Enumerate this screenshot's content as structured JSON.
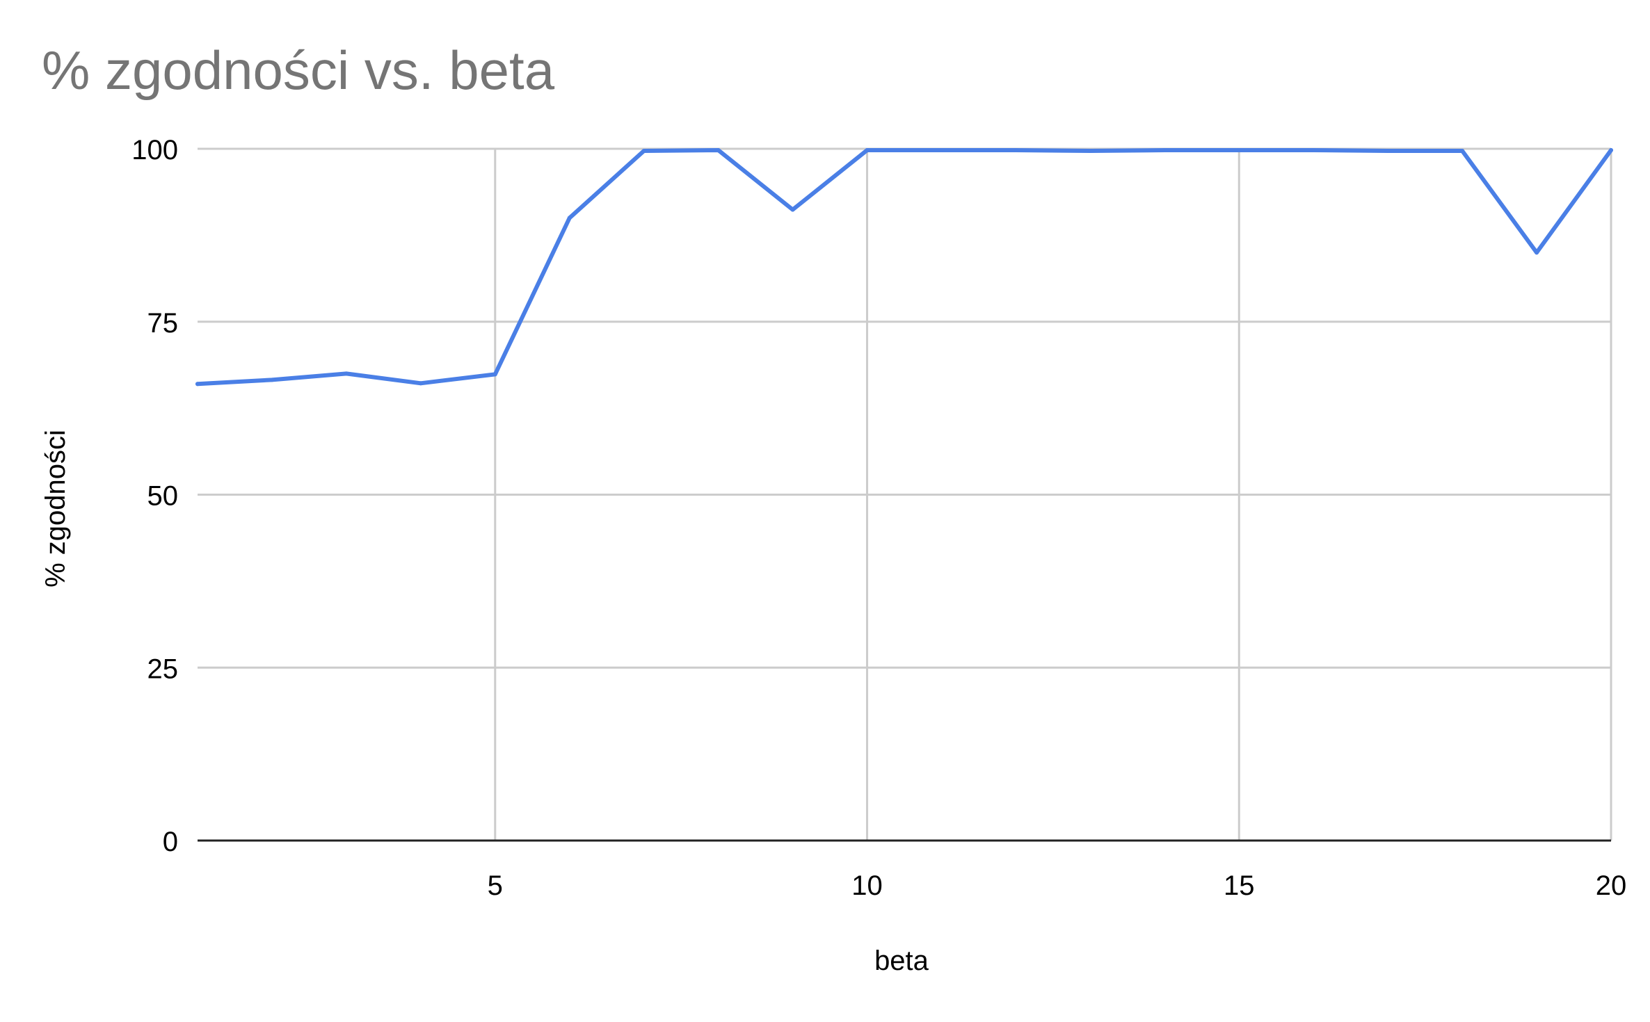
{
  "chart_data": {
    "type": "line",
    "title": "% zgodności vs. beta",
    "xlabel": "beta",
    "ylabel": "% zgodności",
    "xlim": [
      1,
      20
    ],
    "ylim": [
      0,
      100
    ],
    "xticks": [
      5,
      10,
      15,
      20
    ],
    "yticks": [
      0,
      25,
      50,
      75,
      100
    ],
    "grid": true,
    "legend": "none",
    "x": [
      1,
      2,
      3,
      4,
      5,
      6,
      7,
      8,
      9,
      10,
      11,
      12,
      13,
      14,
      15,
      16,
      17,
      18,
      19,
      20
    ],
    "series": [
      {
        "color": "#4a7fe6",
        "values": [
          66,
          66.6,
          67.5,
          66.1,
          67.4,
          90,
          99.7,
          99.8,
          91.2,
          99.8,
          99.8,
          99.8,
          99.7,
          99.8,
          99.8,
          99.8,
          99.7,
          99.7,
          85,
          99.8
        ]
      }
    ],
    "colors": {
      "grid": "#cccccc",
      "axis": "#222222",
      "title": "#757575",
      "text": "#000000"
    }
  }
}
